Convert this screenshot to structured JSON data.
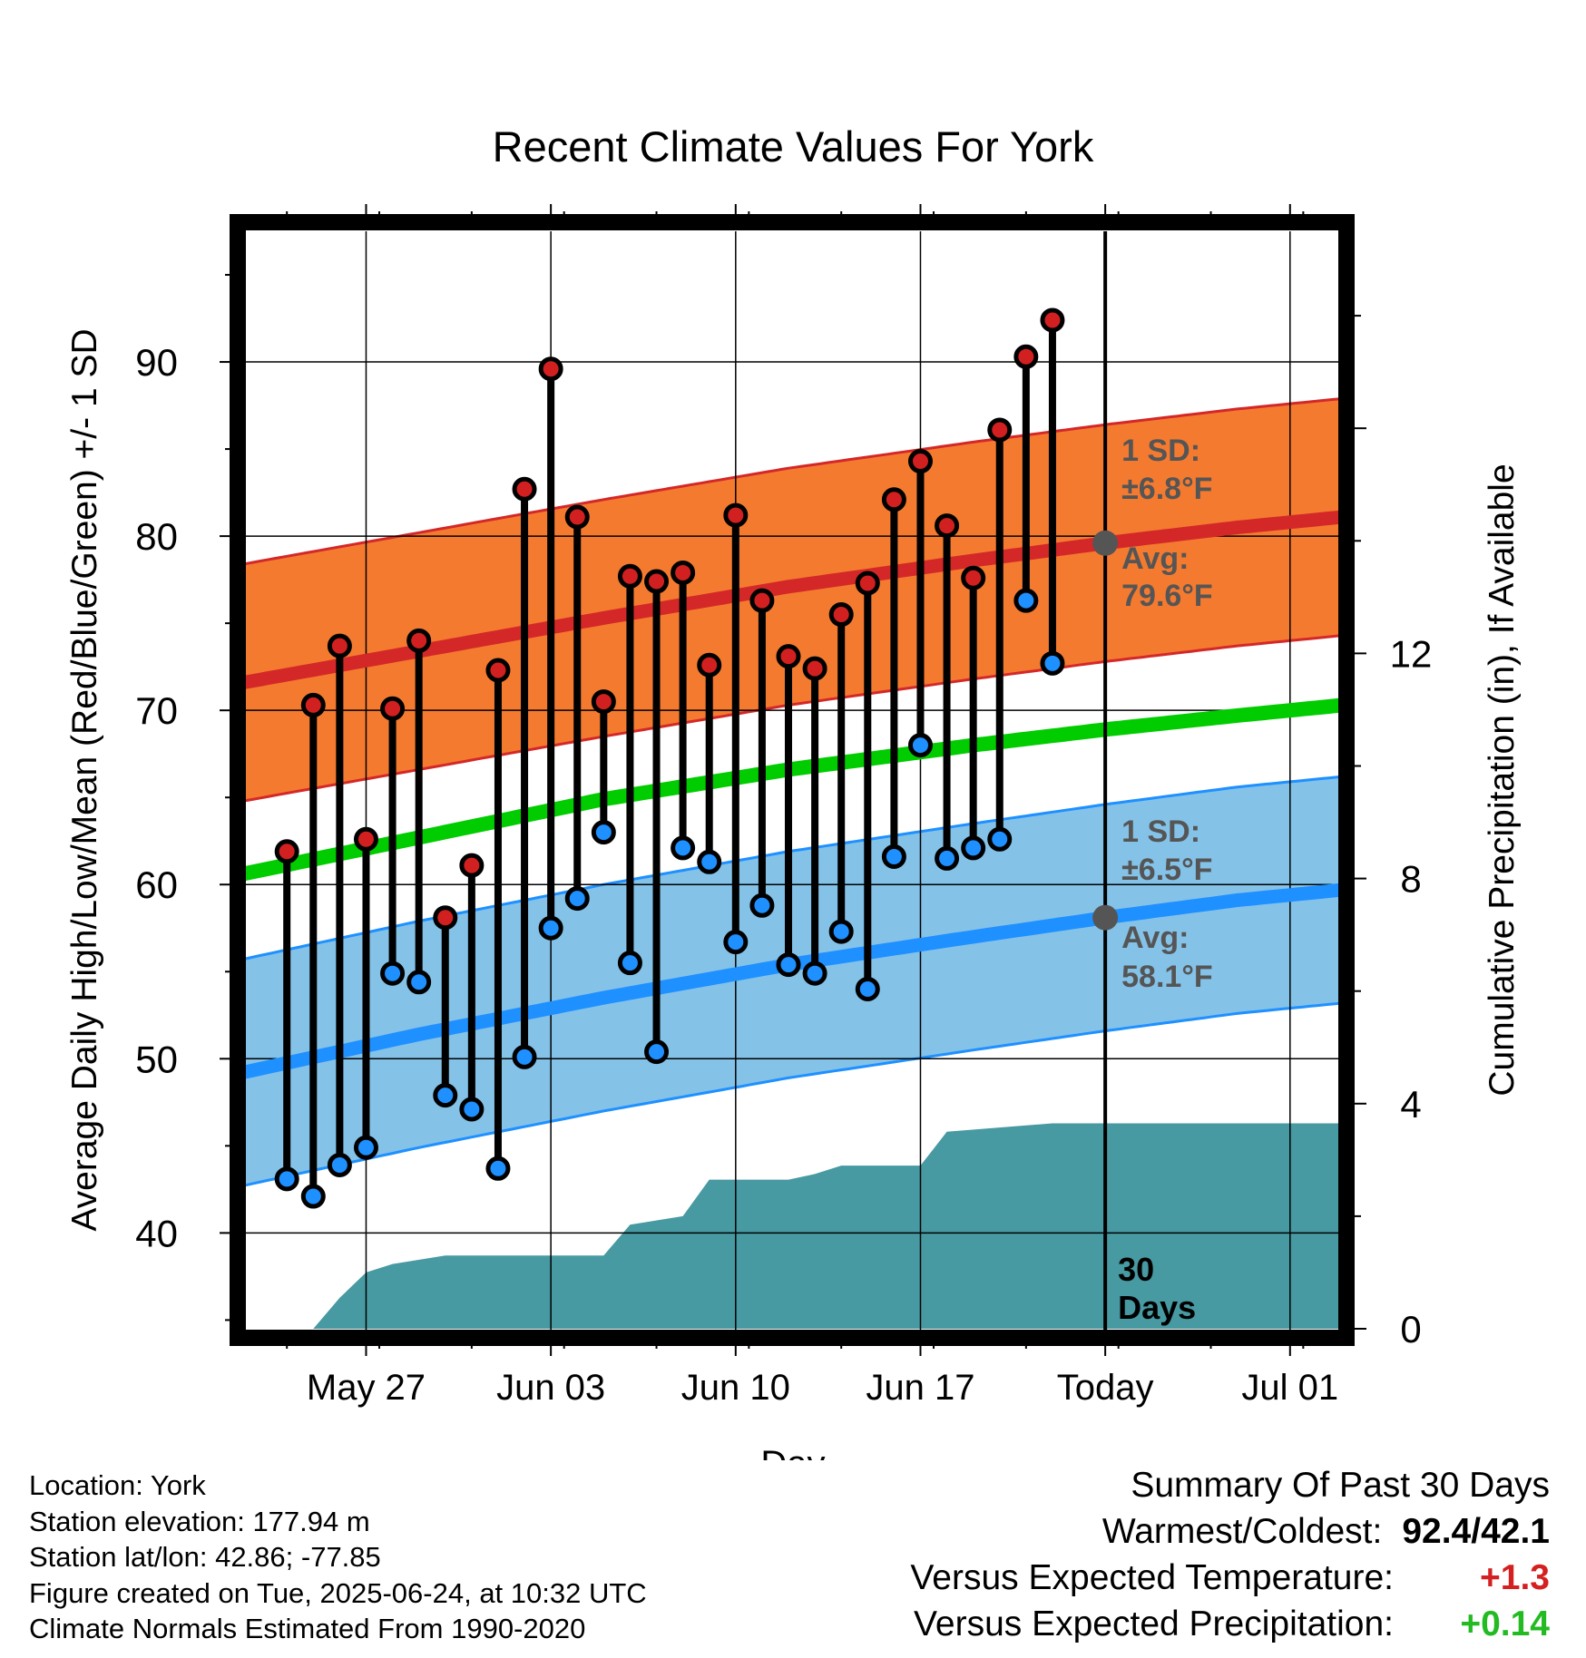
{
  "chart_data": {
    "type": "line",
    "title": "Recent Climate Values For York",
    "xlabel": "Day",
    "ylabel": "Average Daily High/Low/Mean (Red/Blue/Green) +/- 1 SD",
    "y2label": "Cumulative Precipitation (in), If Available",
    "ylim": [
      34.5,
      97.5
    ],
    "y2lim": [
      0,
      19.5
    ],
    "y_ticks": [
      40,
      50,
      60,
      70,
      80,
      90
    ],
    "y2_ticks": [
      0,
      4,
      8,
      12
    ],
    "x_range": [
      "2025-05-22",
      "2025-07-03"
    ],
    "x_ticks": [
      {
        "date": "2025-05-27",
        "label": "May 27"
      },
      {
        "date": "2025-06-03",
        "label": "Jun 03"
      },
      {
        "date": "2025-06-10",
        "label": "Jun 10"
      },
      {
        "date": "2025-06-17",
        "label": "Jun 17"
      },
      {
        "date": "2025-06-24",
        "label": "Today"
      },
      {
        "date": "2025-07-01",
        "label": "Jul 01"
      }
    ],
    "today": "2025-06-24",
    "grid": true,
    "window_label": "30 Days",
    "daily": [
      {
        "date": "2025-05-24",
        "high": 61.9,
        "low": 43.1
      },
      {
        "date": "2025-05-25",
        "high": 70.3,
        "low": 42.1
      },
      {
        "date": "2025-05-26",
        "high": 73.7,
        "low": 43.9
      },
      {
        "date": "2025-05-27",
        "high": 62.6,
        "low": 44.9
      },
      {
        "date": "2025-05-28",
        "high": 70.1,
        "low": 54.9
      },
      {
        "date": "2025-05-29",
        "high": 74.0,
        "low": 54.4
      },
      {
        "date": "2025-05-30",
        "high": 58.1,
        "low": 47.9
      },
      {
        "date": "2025-05-31",
        "high": 61.1,
        "low": 47.1
      },
      {
        "date": "2025-06-01",
        "high": 72.3,
        "low": 43.7
      },
      {
        "date": "2025-06-02",
        "high": 82.7,
        "low": 50.1
      },
      {
        "date": "2025-06-03",
        "high": 89.6,
        "low": 57.5
      },
      {
        "date": "2025-06-04",
        "high": 81.1,
        "low": 59.2
      },
      {
        "date": "2025-06-05",
        "high": 70.5,
        "low": 63.0
      },
      {
        "date": "2025-06-06",
        "high": 77.7,
        "low": 55.5
      },
      {
        "date": "2025-06-07",
        "high": 77.4,
        "low": 50.4
      },
      {
        "date": "2025-06-08",
        "high": 77.9,
        "low": 62.1
      },
      {
        "date": "2025-06-09",
        "high": 72.6,
        "low": 61.3
      },
      {
        "date": "2025-06-10",
        "high": 81.2,
        "low": 56.7
      },
      {
        "date": "2025-06-11",
        "high": 76.3,
        "low": 58.8
      },
      {
        "date": "2025-06-12",
        "high": 73.1,
        "low": 55.4
      },
      {
        "date": "2025-06-13",
        "high": 72.4,
        "low": 54.9
      },
      {
        "date": "2025-06-14",
        "high": 75.5,
        "low": 57.3
      },
      {
        "date": "2025-06-15",
        "high": 77.3,
        "low": 54.0
      },
      {
        "date": "2025-06-16",
        "high": 82.1,
        "low": 61.6
      },
      {
        "date": "2025-06-17",
        "high": 84.3,
        "low": 68.0
      },
      {
        "date": "2025-06-18",
        "high": 80.6,
        "low": 61.5
      },
      {
        "date": "2025-06-19",
        "high": 77.6,
        "low": 62.1
      },
      {
        "date": "2025-06-20",
        "high": 86.1,
        "low": 62.6
      },
      {
        "date": "2025-06-21",
        "high": 90.3,
        "low": 76.3
      },
      {
        "date": "2025-06-22",
        "high": 92.4,
        "low": 72.7
      }
    ],
    "normal_high": {
      "dates": [
        "2025-05-22",
        "2025-05-29",
        "2025-06-05",
        "2025-06-12",
        "2025-06-19",
        "2025-06-24",
        "2025-06-29",
        "2025-07-03"
      ],
      "values": [
        71.5,
        73.4,
        75.3,
        77.1,
        78.6,
        79.6,
        80.5,
        81.1
      ]
    },
    "high_sd": 6.8,
    "normal_mean": {
      "dates": [
        "2025-05-22",
        "2025-05-29",
        "2025-06-05",
        "2025-06-12",
        "2025-06-19",
        "2025-06-24",
        "2025-06-29",
        "2025-07-03"
      ],
      "values": [
        60.5,
        62.7,
        64.9,
        66.6,
        68.0,
        68.9,
        69.7,
        70.3
      ]
    },
    "normal_low": {
      "dates": [
        "2025-05-22",
        "2025-05-29",
        "2025-06-05",
        "2025-06-12",
        "2025-06-19",
        "2025-06-24",
        "2025-06-29",
        "2025-07-03"
      ],
      "values": [
        49.1,
        51.4,
        53.5,
        55.4,
        57.0,
        58.1,
        59.1,
        59.7
      ]
    },
    "low_sd": 6.5,
    "precip_cumulative": {
      "dates": [
        "2025-05-22",
        "2025-05-25",
        "2025-05-26",
        "2025-05-27",
        "2025-05-28",
        "2025-05-30",
        "2025-06-05",
        "2025-06-06",
        "2025-06-08",
        "2025-06-09",
        "2025-06-12",
        "2025-06-13",
        "2025-06-14",
        "2025-06-17",
        "2025-06-18",
        "2025-06-22",
        "2025-06-24",
        "2025-07-03"
      ],
      "values": [
        0,
        0,
        0.55,
        1.0,
        1.15,
        1.3,
        1.3,
        1.85,
        2.0,
        2.65,
        2.65,
        2.75,
        2.9,
        2.9,
        3.5,
        3.65,
        3.65,
        3.65
      ]
    },
    "colors": {
      "high_band": "#f47a30",
      "high_line": "#d42828",
      "mean_line": "#00cc00",
      "low_band": "#84c2e8",
      "low_line": "#1e90ff",
      "precip": "#4799a2",
      "high_marker": "#d22020",
      "low_marker": "#1e90ff",
      "annotation": "#555555",
      "warm": "#d42020",
      "wet": "#22bb22"
    },
    "annotations": {
      "high_sd_label": "1 SD:",
      "high_sd_value": "±6.8°F",
      "high_avg_label": "Avg:",
      "high_avg_value": "79.6°F",
      "low_sd_label": "1 SD:",
      "low_sd_value": "±6.5°F",
      "low_avg_label": "Avg:",
      "low_avg_value": "58.1°F"
    }
  },
  "info": {
    "location": "Location: York",
    "elevation": "Station elevation: 177.94 m",
    "latlon": "Station lat/lon: 42.86; -77.85",
    "created": "Figure created on Tue, 2025-06-24, at 10:32 UTC",
    "normals": "Climate Normals Estimated From 1990-2020"
  },
  "summary": {
    "title": "Summary Of Past 30 Days",
    "warmest_coldest_label": "Warmest/Coldest:",
    "warmest_coldest_value": "92.4/42.1",
    "temp_label": "Versus Expected Temperature:",
    "temp_value": "+1.3",
    "precip_label": "Versus Expected Precipitation:",
    "precip_value": "+0.14"
  }
}
